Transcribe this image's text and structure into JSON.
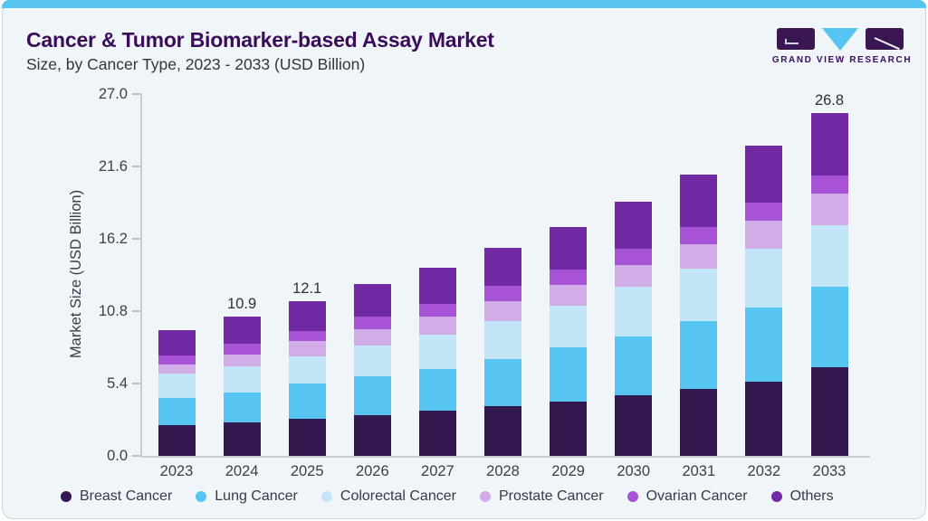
{
  "header": {
    "title": "Cancer & Tumor Biomarker-based Assay Market",
    "subtitle": "Size, by Cancer Type, 2023 - 2033 (USD Billion)"
  },
  "logo": {
    "text": "GRAND VIEW RESEARCH"
  },
  "chart_data": {
    "type": "bar",
    "stacked": true,
    "title": "Cancer & Tumor Biomarker-based Assay Market Size, by Cancer Type, 2023 - 2033 (USD Billion)",
    "xlabel": "",
    "ylabel": "Market Size (USD Billion)",
    "categories": [
      "2023",
      "2024",
      "2025",
      "2026",
      "2027",
      "2028",
      "2029",
      "2030",
      "2031",
      "2032",
      "2033"
    ],
    "ytick_labels": [
      "27.0",
      "21.6",
      "16.2",
      "10.8",
      "5.4",
      "0.0"
    ],
    "yticks": [
      27.0,
      21.6,
      16.2,
      10.8,
      5.4,
      0.0
    ],
    "ylim": [
      0,
      27
    ],
    "grid": false,
    "legend_position": "bottom",
    "series": [
      {
        "name": "Breast Cancer",
        "color": "#33184f",
        "values": [
          2.4,
          2.6,
          2.92,
          3.15,
          3.5,
          3.85,
          4.25,
          4.7,
          5.25,
          5.8,
          6.95
        ]
      },
      {
        "name": "Lung Cancer",
        "color": "#56c5f2",
        "values": [
          2.15,
          2.33,
          2.7,
          3.05,
          3.3,
          3.7,
          4.2,
          4.65,
          5.25,
          5.8,
          6.25
        ]
      },
      {
        "name": "Colorectal Cancer",
        "color": "#c2e6f8",
        "values": [
          1.85,
          2.05,
          2.14,
          2.45,
          2.7,
          3.0,
          3.3,
          3.85,
          4.1,
          4.6,
          4.8
        ]
      },
      {
        "name": "Prostate Cancer",
        "color": "#d2abe9",
        "values": [
          0.75,
          0.94,
          1.19,
          1.25,
          1.4,
          1.5,
          1.6,
          1.7,
          1.95,
          2.15,
          2.45
        ]
      },
      {
        "name": "Ovarian Cancer",
        "color": "#a853d6",
        "values": [
          0.7,
          0.81,
          0.83,
          0.95,
          1.0,
          1.2,
          1.2,
          1.25,
          1.35,
          1.45,
          1.45
        ]
      },
      {
        "name": "Others",
        "color": "#7229a4",
        "values": [
          2.0,
          2.17,
          2.32,
          2.55,
          2.8,
          3.0,
          3.3,
          3.7,
          4.05,
          4.45,
          4.9
        ]
      }
    ],
    "total_labels": [
      "",
      "10.9",
      "12.1",
      "",
      "",
      "",
      "",
      "",
      "",
      "",
      "26.8"
    ],
    "totals": [
      9.85,
      10.9,
      12.1,
      13.4,
      14.7,
      16.25,
      17.85,
      19.85,
      21.95,
      24.25,
      26.8
    ]
  },
  "colors": {
    "accent_strip": "#56c5f2",
    "card_background": "#eff5f9",
    "title_text": "#3a0c59",
    "axis_line": "#c6cdd5"
  }
}
